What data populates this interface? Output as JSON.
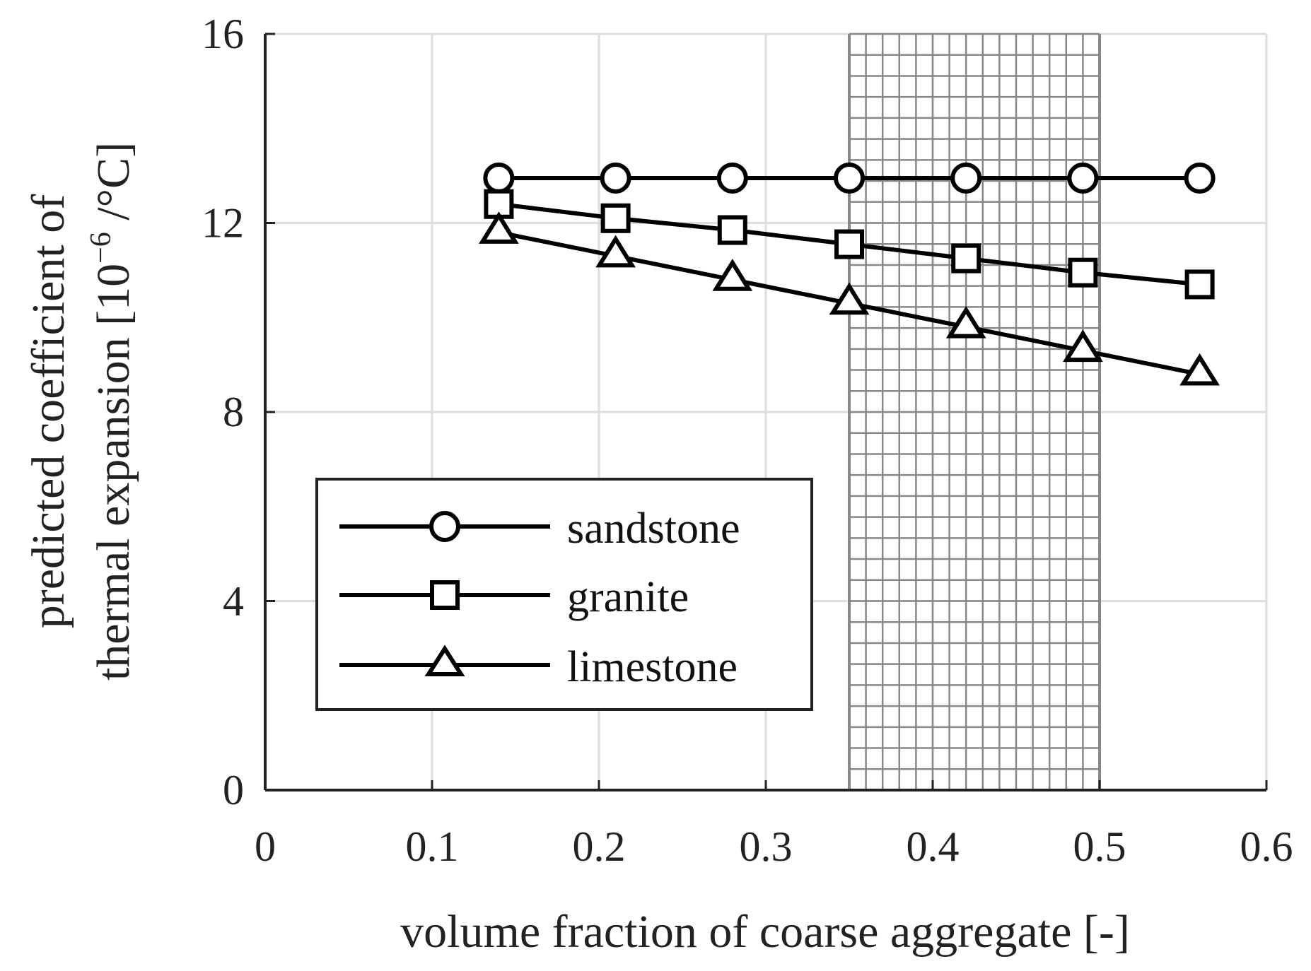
{
  "chart_data": {
    "type": "line",
    "x": [
      0.14,
      0.21,
      0.28,
      0.35,
      0.42,
      0.49,
      0.56
    ],
    "series": [
      {
        "name": "sandstone",
        "marker": "circle",
        "values": [
          12.95,
          12.95,
          12.95,
          12.95,
          12.95,
          12.95,
          12.95
        ]
      },
      {
        "name": "granite",
        "marker": "square",
        "values": [
          12.4,
          12.1,
          11.85,
          11.55,
          11.25,
          10.95,
          10.7
        ]
      },
      {
        "name": "limestone",
        "marker": "triangle",
        "values": [
          11.8,
          11.3,
          10.8,
          10.3,
          9.8,
          9.3,
          8.8
        ]
      }
    ],
    "xlabel": "volume fraction of coarse aggregate [-]",
    "ylabel_line1": "predicted coefficient of",
    "ylabel_line2_prefix": "thermal expansion [10",
    "ylabel_line2_exponent": "−6",
    "ylabel_line2_suffix": " /°C]",
    "xlim": [
      0,
      0.6
    ],
    "ylim": [
      0,
      16
    ],
    "xticks": [
      0,
      0.1,
      0.2,
      0.3,
      0.4,
      0.5,
      0.6
    ],
    "xtick_labels": [
      "0",
      "0.1",
      "0.2",
      "0.3",
      "0.4",
      "0.5",
      "0.6"
    ],
    "yticks": [
      0,
      4,
      8,
      12,
      16
    ],
    "ytick_labels": [
      "0",
      "4",
      "8",
      "12",
      "16"
    ],
    "shaded_region": {
      "x_start": 0.35,
      "x_end": 0.5,
      "pattern": "crosshatch"
    },
    "grid": true,
    "legend_position": "lower-left"
  },
  "colors": {
    "series": "#000000",
    "grid": "#dddddd",
    "hatch": "#888888",
    "axis": "#222222"
  }
}
